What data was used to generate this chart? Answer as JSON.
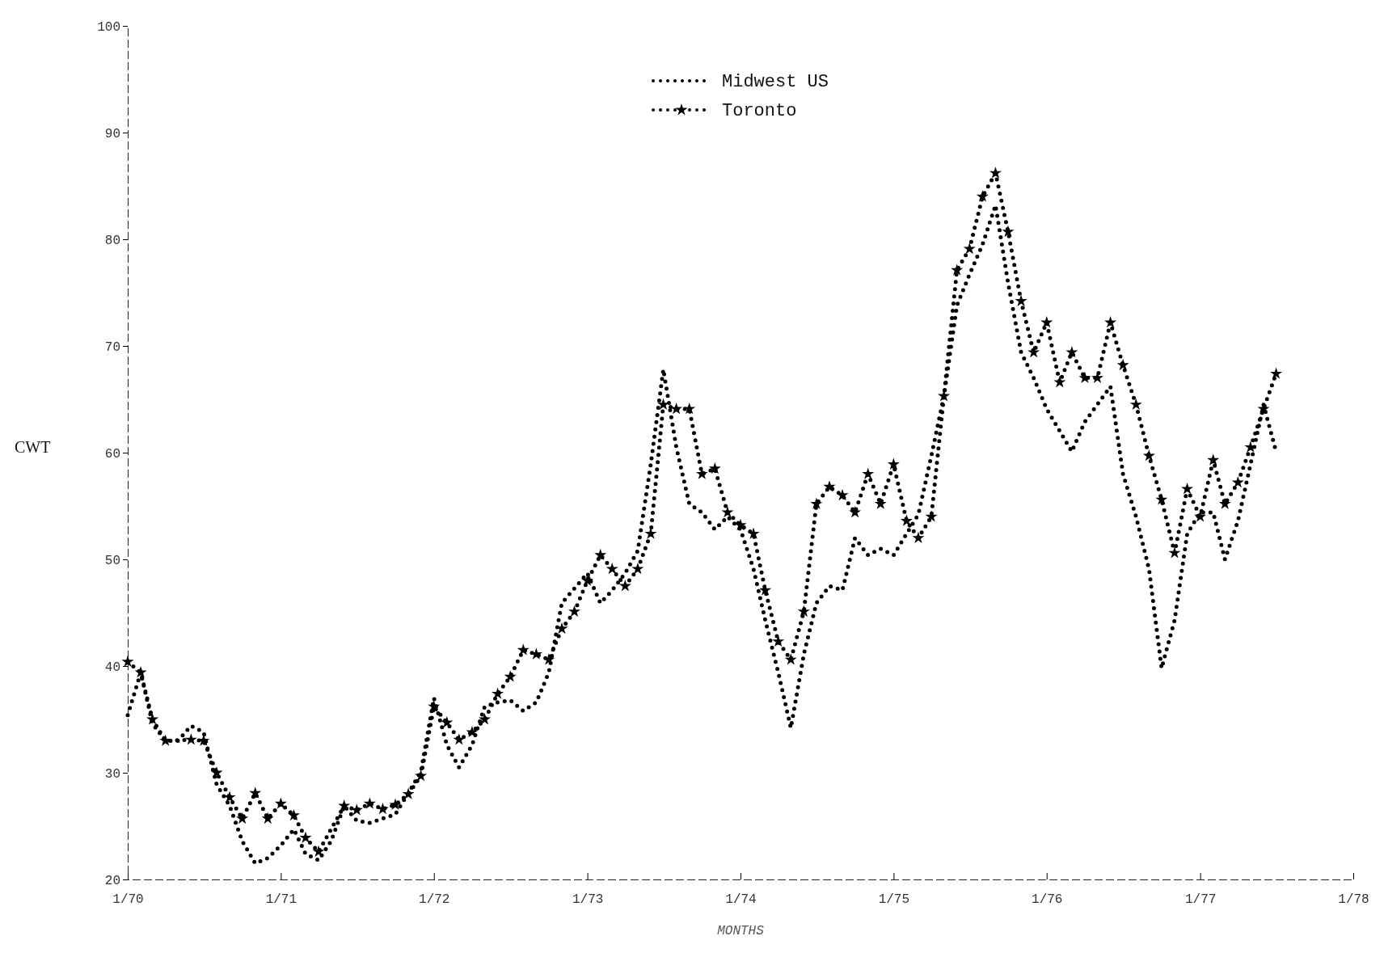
{
  "chart_data": {
    "type": "line",
    "xlabel": "MONTHS",
    "ylabel": "CWT",
    "xlim": [
      "1970-01",
      "1978-01"
    ],
    "ylim": [
      20,
      100
    ],
    "xticks": [
      {
        "value": "1970-01",
        "label": "1/70"
      },
      {
        "value": "1971-01",
        "label": "1/71"
      },
      {
        "value": "1972-01",
        "label": "1/72"
      },
      {
        "value": "1973-01",
        "label": "1/73"
      },
      {
        "value": "1974-01",
        "label": "1/74"
      },
      {
        "value": "1975-01",
        "label": "1/75"
      },
      {
        "value": "1976-01",
        "label": "1/76"
      },
      {
        "value": "1977-01",
        "label": "1/77"
      },
      {
        "value": "1978-01",
        "label": "1/78"
      }
    ],
    "yticks": [
      20,
      30,
      40,
      50,
      60,
      70,
      80,
      90,
      100
    ],
    "legend": "top",
    "line_style": "dotted",
    "series": [
      {
        "name": "Midwest US",
        "color": "#000000",
        "marker": "none",
        "x": [
          "1970-01",
          "1970-02",
          "1970-03",
          "1970-04",
          "1970-05",
          "1970-06",
          "1970-07",
          "1970-08",
          "1970-09",
          "1970-10",
          "1970-11",
          "1970-12",
          "1971-01",
          "1971-02",
          "1971-03",
          "1971-04",
          "1971-05",
          "1971-06",
          "1971-07",
          "1971-08",
          "1971-10",
          "1971-11",
          "1971-12",
          "1972-01",
          "1972-02",
          "1972-03",
          "1972-04",
          "1972-05",
          "1972-06",
          "1972-07",
          "1972-08",
          "1972-09",
          "1972-10",
          "1972-11",
          "1973-01",
          "1973-02",
          "1973-03",
          "1973-04",
          "1973-05",
          "1973-06",
          "1973-07",
          "1973-08",
          "1973-09",
          "1973-10",
          "1973-11",
          "1973-12",
          "1974-01",
          "1974-02",
          "1974-03",
          "1974-04",
          "1974-05",
          "1974-06",
          "1974-07",
          "1974-08",
          "1974-09",
          "1974-10",
          "1974-11",
          "1974-12",
          "1975-01",
          "1975-02",
          "1975-03",
          "1975-04",
          "1975-05",
          "1975-06",
          "1975-07",
          "1975-08",
          "1975-09",
          "1975-10",
          "1975-11",
          "1975-12",
          "1976-01",
          "1976-03",
          "1976-04",
          "1976-06",
          "1976-07",
          "1976-08",
          "1976-09",
          "1976-10",
          "1976-11",
          "1976-12",
          "1977-01",
          "1977-02",
          "1977-03",
          "1977-04",
          "1977-05",
          "1977-06",
          "1977-07"
        ],
        "values": [
          35.4,
          39.4,
          34.6,
          33,
          33,
          34.4,
          33.8,
          28.9,
          26.9,
          23.6,
          21.5,
          22,
          23.2,
          24.7,
          22.4,
          21.8,
          23.6,
          26.9,
          25.5,
          25.3,
          26.1,
          28.1,
          30.1,
          37,
          32.6,
          30.5,
          32.6,
          36.2,
          36.6,
          36.8,
          35.8,
          36.6,
          39.4,
          45.9,
          48.7,
          45.9,
          47.1,
          48.7,
          50.8,
          58.9,
          67.8,
          60.5,
          55.2,
          54.4,
          52.8,
          54,
          52.8,
          49.1,
          44.3,
          39.4,
          34.2,
          41.1,
          45.9,
          47.5,
          47.1,
          52,
          50.4,
          51,
          50.4,
          52.4,
          54.2,
          59.7,
          65.3,
          73.8,
          76.7,
          79.5,
          83.2,
          75.9,
          69.4,
          67,
          64.1,
          60.1,
          62.9,
          66.2,
          58,
          54,
          49.1,
          39.8,
          44.3,
          52.4,
          54.4,
          54.4,
          50,
          53.6,
          58.9,
          64.5,
          60.1
        ]
      },
      {
        "name": "Toronto",
        "color": "#000000",
        "marker": "star",
        "x": [
          "1970-01",
          "1970-02",
          "1970-03",
          "1970-04",
          "1970-06",
          "1970-07",
          "1970-08",
          "1970-09",
          "1970-10",
          "1970-11",
          "1970-12",
          "1971-01",
          "1971-02",
          "1971-03",
          "1971-04",
          "1971-06",
          "1971-07",
          "1971-08",
          "1971-09",
          "1971-10",
          "1971-11",
          "1971-12",
          "1972-01",
          "1972-02",
          "1972-03",
          "1972-04",
          "1972-05",
          "1972-06",
          "1972-07",
          "1972-08",
          "1972-09",
          "1972-10",
          "1972-11",
          "1972-12",
          "1973-01",
          "1973-02",
          "1973-03",
          "1973-04",
          "1973-05",
          "1973-06",
          "1973-07",
          "1973-08",
          "1973-09",
          "1973-10",
          "1973-11",
          "1973-12",
          "1974-01",
          "1974-02",
          "1974-03",
          "1974-04",
          "1974-05",
          "1974-06",
          "1974-07",
          "1974-08",
          "1974-09",
          "1974-10",
          "1974-11",
          "1974-12",
          "1975-01",
          "1975-02",
          "1975-03",
          "1975-04",
          "1975-05",
          "1975-06",
          "1975-07",
          "1975-08",
          "1975-09",
          "1975-10",
          "1975-11",
          "1975-12",
          "1976-01",
          "1976-02",
          "1976-03",
          "1976-04",
          "1976-05",
          "1976-06",
          "1976-07",
          "1976-08",
          "1976-09",
          "1976-10",
          "1976-11",
          "1976-12",
          "1977-01",
          "1977-02",
          "1977-03",
          "1977-04",
          "1977-05",
          "1977-06",
          "1977-07"
        ],
        "values": [
          40.4,
          39.4,
          35,
          33,
          33.1,
          33,
          30,
          27.7,
          25.7,
          28.1,
          25.7,
          27.1,
          26,
          23.9,
          22.6,
          26.9,
          26.5,
          27.1,
          26.6,
          27,
          28,
          29.7,
          36.2,
          34.7,
          33.1,
          33.8,
          35,
          37.4,
          39,
          41.5,
          41.1,
          40.6,
          43.5,
          45.1,
          48,
          50.4,
          49.1,
          47.5,
          49.1,
          52.4,
          64.5,
          64.1,
          64.1,
          58,
          58.5,
          54.4,
          53.2,
          52.4,
          47.1,
          42.3,
          40.6,
          45.1,
          55.2,
          56.8,
          56,
          54.4,
          58,
          55.2,
          58.9,
          53.6,
          52,
          54,
          65.3,
          77.1,
          79.1,
          84,
          86.2,
          80.7,
          74.2,
          69.4,
          72.2,
          66.6,
          69.4,
          67,
          67,
          72.2,
          68.2,
          64.5,
          59.7,
          55.6,
          50.6,
          56.6,
          54,
          59.3,
          55.2,
          57.2,
          60.5,
          64.1,
          67.4
        ]
      }
    ]
  }
}
